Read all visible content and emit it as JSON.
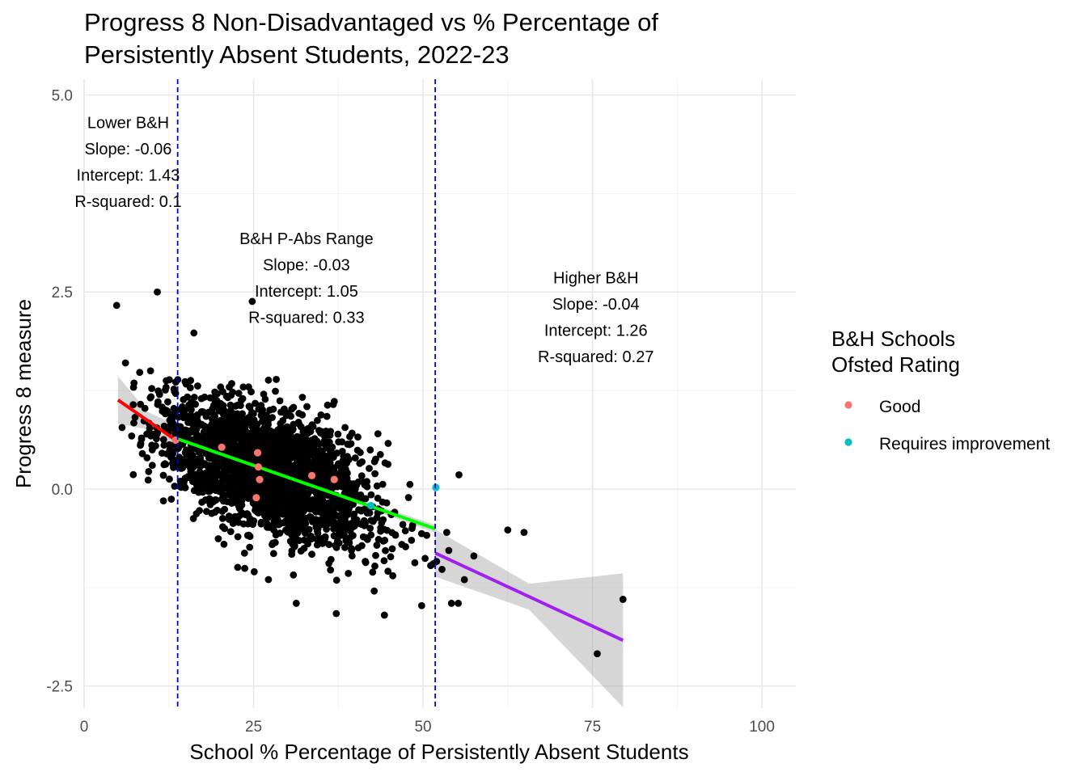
{
  "chart_data": {
    "type": "scatter",
    "title_lines": [
      "Progress 8 Non-Disadvantaged vs % Percentage of",
      "Persistently Absent Students, 2022-23"
    ],
    "xlabel": "School % Percentage of Persistently Absent Students",
    "ylabel": "Progress 8 measure",
    "xlim": [
      0,
      105
    ],
    "ylim": [
      -2.78,
      5.2
    ],
    "x_ticks": [
      "0",
      "25",
      "50",
      "75",
      "100"
    ],
    "x_tick_values": [
      0,
      25,
      50,
      75,
      100
    ],
    "y_ticks": [
      "-2.5",
      "0.0",
      "2.5",
      "5.0"
    ],
    "y_tick_values": [
      -2.5,
      0,
      2.5,
      5
    ],
    "grid": true,
    "vlines": [
      {
        "x": 13.8,
        "color": "#0000cc",
        "style": "dashed"
      },
      {
        "x": 51.8,
        "color": "#0000cc",
        "style": "dashed"
      }
    ],
    "regressions": [
      {
        "name": "Lower B&H",
        "x_range": [
          5,
          13.8
        ],
        "slope": -0.06,
        "intercept": 1.43,
        "r_squared": 0.1,
        "color": "#ff0000",
        "band": [
          0.3,
          0.2
        ]
      },
      {
        "name": "B&H P-Abs Range",
        "x_range": [
          13.8,
          51.8
        ],
        "slope": -0.03,
        "intercept": 1.05,
        "r_squared": 0.33,
        "color": "#00ff00",
        "band": [
          0.05,
          0.05
        ]
      },
      {
        "name": "Higher B&H",
        "x_range": [
          51.8,
          79.5
        ],
        "slope": -0.04,
        "intercept": 1.26,
        "r_squared": 0.27,
        "color": "#a020f0",
        "band": [
          0.3,
          0.85
        ]
      }
    ],
    "annotations": [
      {
        "lines": [
          "Lower B&H",
          "Slope: -0.06",
          "Intercept: 1.43",
          "R-squared: 0.1"
        ],
        "x": 6.5,
        "y": 4.65
      },
      {
        "lines": [
          "B&H P-Abs Range",
          "Slope: -0.03",
          "Intercept: 1.05",
          "R-squared: 0.33"
        ],
        "x": 32.8,
        "y": 3.18
      },
      {
        "lines": [
          "Higher B&H",
          "Slope: -0.04",
          "Intercept: 1.26",
          "R-squared: 0.27"
        ],
        "x": 75.5,
        "y": 2.68
      }
    ],
    "cloud": {
      "x_mean": 27,
      "x_sd": 8,
      "x_range": [
        7,
        52
      ],
      "slope": -0.03,
      "intercept": 1.05,
      "y_sd": 0.38,
      "color": "#000000"
    },
    "outliers": [
      {
        "x": 4.8,
        "y": 2.33
      },
      {
        "x": 10.8,
        "y": 2.5
      },
      {
        "x": 16.2,
        "y": 1.98
      },
      {
        "x": 24.8,
        "y": 2.38
      },
      {
        "x": 6.1,
        "y": 1.6
      },
      {
        "x": 8.2,
        "y": 1.48
      },
      {
        "x": 9.8,
        "y": 1.5
      },
      {
        "x": 55.3,
        "y": 0.18
      },
      {
        "x": 53.5,
        "y": -0.55
      },
      {
        "x": 53.8,
        "y": -0.78
      },
      {
        "x": 52.0,
        "y": -0.92
      },
      {
        "x": 51.5,
        "y": -0.95
      },
      {
        "x": 56.1,
        "y": -1.15
      },
      {
        "x": 62.5,
        "y": -0.52
      },
      {
        "x": 64.9,
        "y": -0.55
      },
      {
        "x": 79.5,
        "y": -1.4
      },
      {
        "x": 75.7,
        "y": -2.09
      },
      {
        "x": 31.3,
        "y": -1.45
      },
      {
        "x": 37.2,
        "y": -1.58
      },
      {
        "x": 44.3,
        "y": -1.6
      },
      {
        "x": 49.8,
        "y": -1.48
      },
      {
        "x": 54.2,
        "y": -1.45
      },
      {
        "x": 55.2,
        "y": -1.45
      },
      {
        "x": 25.1,
        "y": -1.05
      },
      {
        "x": 52.8,
        "y": -1.02
      },
      {
        "x": 5.6,
        "y": 0.78
      },
      {
        "x": 11.7,
        "y": -0.15
      },
      {
        "x": 57.5,
        "y": -0.85
      }
    ],
    "series": [
      {
        "name": "Good",
        "color": "#f8766d",
        "points": [
          [
            13.5,
            0.62
          ],
          [
            20.3,
            0.53
          ],
          [
            25.6,
            0.46
          ],
          [
            25.7,
            0.28
          ],
          [
            25.9,
            0.12
          ],
          [
            25.4,
            -0.11
          ],
          [
            33.6,
            0.17
          ],
          [
            36.9,
            0.12
          ]
        ]
      },
      {
        "name": "Requires improvement",
        "color": "#00bfc4",
        "points": [
          [
            42.3,
            -0.21
          ],
          [
            51.9,
            0.02
          ]
        ]
      }
    ],
    "legend": {
      "title_lines": [
        "B&H Schools",
        "Ofsted Rating"
      ],
      "position": "right",
      "items": [
        {
          "label": "Good",
          "color": "#f8766d"
        },
        {
          "label": "Requires improvement",
          "color": "#00bfc4"
        }
      ]
    }
  }
}
